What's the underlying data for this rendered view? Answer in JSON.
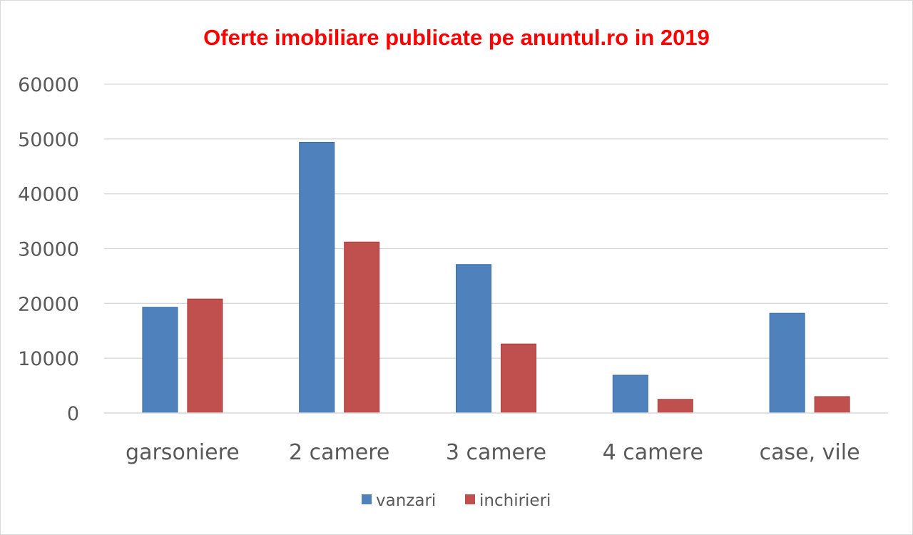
{
  "chart_data": {
    "type": "bar",
    "title": "Oferte imobiliare publicate pe anuntul.ro in 2019",
    "categories": [
      "garsoniere",
      "2 camere",
      "3 camere",
      "4 camere",
      "case, vile"
    ],
    "series": [
      {
        "name": "vanzari",
        "color": "#4f81bd",
        "values": [
          19300,
          49400,
          27100,
          6900,
          18200
        ]
      },
      {
        "name": "inchirieri",
        "color": "#c0504d",
        "values": [
          20800,
          31200,
          12600,
          2500,
          3000
        ]
      }
    ],
    "yticks": [
      "0",
      "10000",
      "20000",
      "30000",
      "40000",
      "50000",
      "60000"
    ],
    "ylim": [
      0,
      60000
    ],
    "grid": true,
    "legend_position": "bottom",
    "title_color": "#ff0000"
  }
}
